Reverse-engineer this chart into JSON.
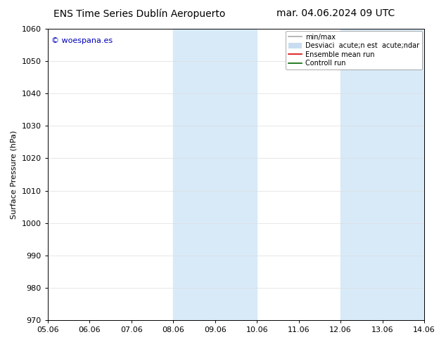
{
  "title_left": "ENS Time Series Dublín Aeropuerto",
  "title_right": "mar. 04.06.2024 09 UTC",
  "ylabel": "Surface Pressure (hPa)",
  "ylim": [
    970,
    1060
  ],
  "yticks": [
    970,
    980,
    990,
    1000,
    1010,
    1020,
    1030,
    1040,
    1050,
    1060
  ],
  "xtick_labels": [
    "05.06",
    "06.06",
    "07.06",
    "08.06",
    "09.06",
    "10.06",
    "11.06",
    "12.06",
    "13.06",
    "14.06"
  ],
  "watermark": "© woespana.es",
  "watermark_color": "#0000bb",
  "bg_color": "#ffffff",
  "shaded_color": "#d8eaf8",
  "shaded_regions": [
    {
      "xstart": 3,
      "xend": 4,
      "color": "#d8eaf8"
    },
    {
      "xstart": 4,
      "xend": 5,
      "color": "#d8eaf8"
    },
    {
      "xstart": 7,
      "xend": 8,
      "color": "#d8eaf8"
    },
    {
      "xstart": 8,
      "xend": 9,
      "color": "#d8eaf8"
    }
  ],
  "legend_line_minmax_color": "#aaaaaa",
  "legend_band_color": "#c8ddf0",
  "legend_ensemble_color": "#dd0000",
  "legend_control_color": "#006600",
  "legend_label_minmax": "min/max",
  "legend_label_band": "Desviaci  acute;n est  acute;ndar",
  "legend_label_ensemble": "Ensemble mean run",
  "legend_label_control": "Controll run",
  "font_size_title": 10,
  "font_size_axis": 8,
  "font_size_ticks": 8,
  "font_size_legend": 7,
  "font_size_watermark": 8
}
